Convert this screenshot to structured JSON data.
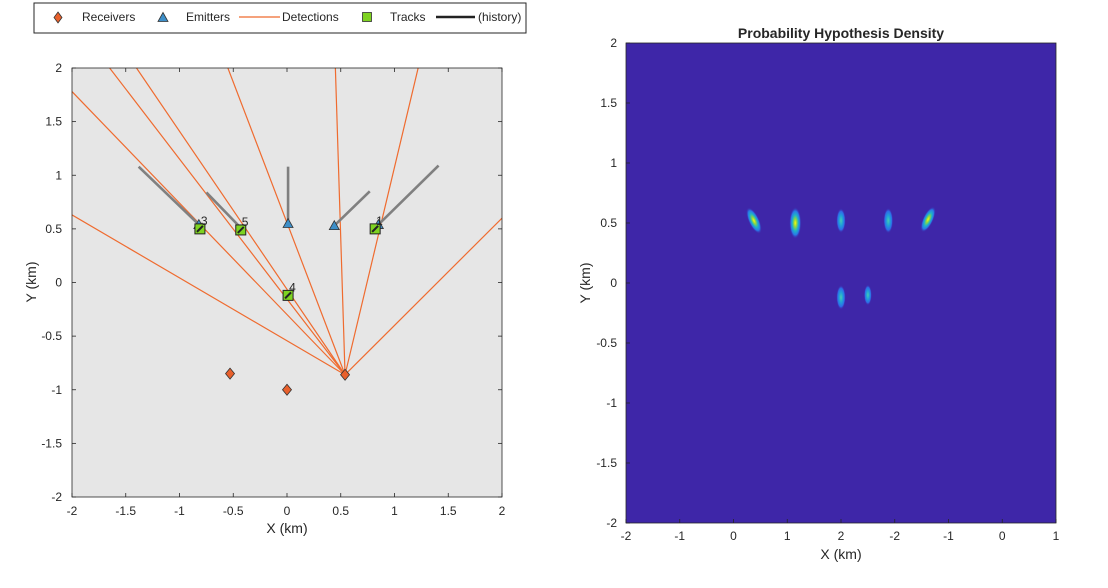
{
  "colors": {
    "receiver": "#e8602c",
    "emitter": "#3d8fc9",
    "detection": "#ef6b2f",
    "track": "#7ed321",
    "history": "#222222",
    "emitter_history": "#808080",
    "left_plot_bg": "#e6e6e6",
    "density_bg": "#3e26a8"
  },
  "legend": {
    "items": [
      {
        "label": "Receivers",
        "icon": "diamond-icon"
      },
      {
        "label": "Emitters",
        "icon": "triangle-icon"
      },
      {
        "label": "Detections",
        "icon": "line-icon"
      },
      {
        "label": "Tracks",
        "icon": "square-icon"
      },
      {
        "label": "(history)",
        "icon": "thick-line-icon"
      }
    ]
  },
  "chart_data": [
    {
      "type": "scatter",
      "title": "",
      "xlabel": "X (km)",
      "ylabel": "Y (km)",
      "xlim": [
        -2,
        2
      ],
      "ylim": [
        -2,
        2
      ],
      "x_ticks": [
        "-2",
        "-1.5",
        "-1",
        "-0.5",
        "0",
        "0.5",
        "1",
        "1.5",
        "2"
      ],
      "y_ticks": [
        "2",
        "1.5",
        "1",
        "0.5",
        "0",
        "-0.5",
        "-1",
        "-1.5",
        "-2"
      ],
      "grid": false,
      "receivers": [
        {
          "x": -0.53,
          "y": -0.85
        },
        {
          "x": 0.0,
          "y": -1.0
        },
        {
          "x": 0.54,
          "y": -0.86
        }
      ],
      "emitters": [
        {
          "x": -0.82,
          "y": 0.54
        },
        {
          "x": 0.01,
          "y": 0.55
        },
        {
          "x": 0.44,
          "y": 0.53
        },
        {
          "x": 0.85,
          "y": 0.54
        }
      ],
      "emitter_paths": [
        {
          "x": [
            -1.38,
            -0.82
          ],
          "y": [
            1.08,
            0.54
          ]
        },
        {
          "x": [
            -0.75,
            -0.44
          ],
          "y": [
            0.84,
            0.52
          ]
        },
        {
          "x": [
            0.01,
            0.01
          ],
          "y": [
            1.08,
            0.55
          ]
        },
        {
          "x": [
            0.77,
            0.44
          ],
          "y": [
            0.85,
            0.53
          ]
        },
        {
          "x": [
            1.41,
            0.85
          ],
          "y": [
            1.09,
            0.54
          ]
        }
      ],
      "detections": {
        "origin": {
          "x": 0.54,
          "y": -0.86
        },
        "endpoints": [
          {
            "x": -2.0,
            "y": 0.63
          },
          {
            "x": -2.0,
            "y": 1.78
          },
          {
            "x": -1.65,
            "y": 2.0
          },
          {
            "x": -1.4,
            "y": 2.0
          },
          {
            "x": -0.55,
            "y": 2.0
          },
          {
            "x": 0.45,
            "y": 2.0
          },
          {
            "x": 1.22,
            "y": 2.0
          },
          {
            "x": 2.0,
            "y": 0.6
          }
        ]
      },
      "tracks": [
        {
          "id": "1",
          "x": 0.82,
          "y": 0.5
        },
        {
          "id": "3",
          "x": -0.81,
          "y": 0.5
        },
        {
          "id": "4",
          "x": 0.01,
          "y": -0.12
        },
        {
          "id": "5",
          "x": -0.43,
          "y": 0.49
        }
      ]
    },
    {
      "type": "heatmap",
      "title": "Probability Hypothesis Density",
      "xlabel": "X (km)",
      "ylabel": "Y (km)",
      "xlim": [
        -2,
        6
      ],
      "ylim": [
        -2,
        2
      ],
      "x_ticks": [
        "-2",
        "-1",
        "0",
        "1",
        "2",
        "-2",
        "-1",
        "0",
        "1"
      ],
      "y_ticks": [
        "2",
        "1.5",
        "1",
        "0.5",
        "0",
        "-0.5",
        "-1",
        "-1.5",
        "-2"
      ],
      "peaks": [
        {
          "x": 0.38,
          "y": 0.52,
          "intensity": 0.8
        },
        {
          "x": 1.15,
          "y": 0.5,
          "intensity": 1.0
        },
        {
          "x": 2.0,
          "y": 0.52,
          "intensity": 0.55
        },
        {
          "x": 2.88,
          "y": 0.52,
          "intensity": 0.6
        },
        {
          "x": 3.62,
          "y": 0.53,
          "intensity": 0.75
        },
        {
          "x": 2.0,
          "y": -0.12,
          "intensity": 0.55
        },
        {
          "x": 2.5,
          "y": -0.1,
          "intensity": 0.3
        }
      ]
    }
  ]
}
